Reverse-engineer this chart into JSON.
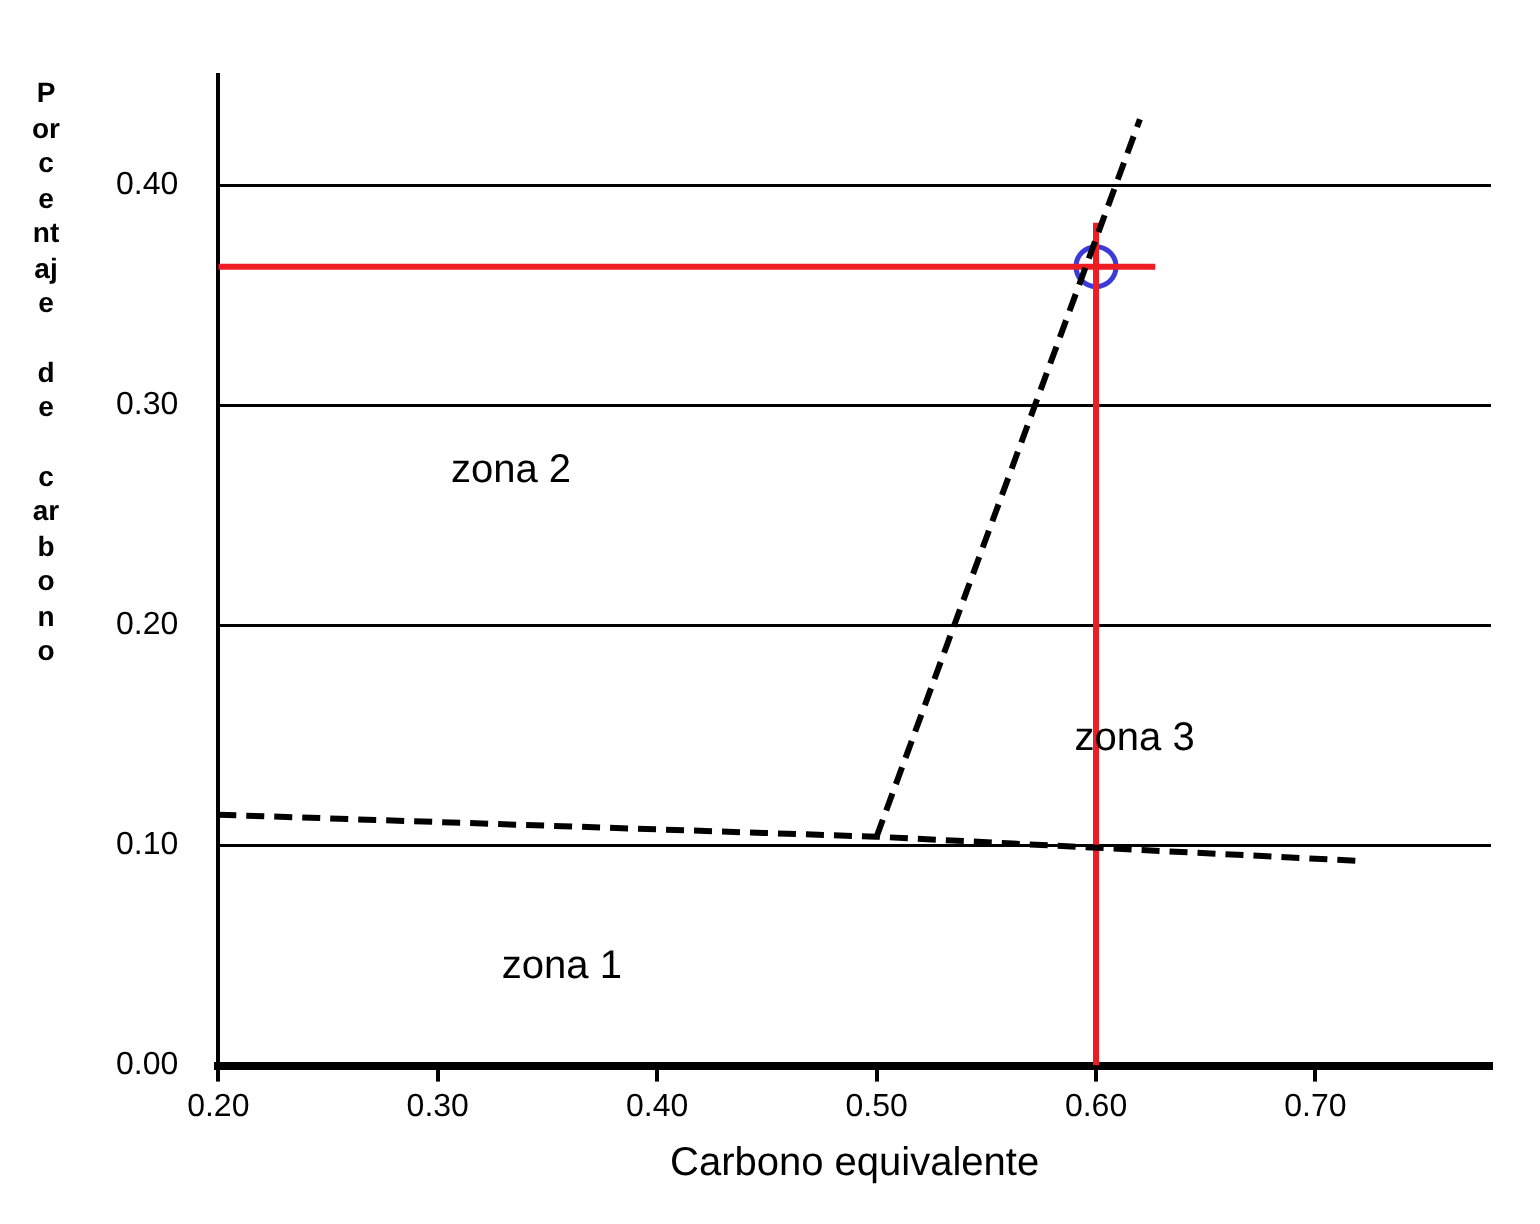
{
  "chart_data": {
    "type": "line",
    "xlabel": "Carbono equivalente",
    "ylabel": "Porcentaje de carbono",
    "series": [
      {
        "type": "line",
        "color": "#000000",
        "line_style": "dashed",
        "x": [
          0.2,
          0.5,
          0.72
        ],
        "values": [
          0.114,
          0.104,
          0.093
        ]
      },
      {
        "type": "line",
        "color": "#000000",
        "line_style": "dashed",
        "x": [
          0.5,
          0.62
        ],
        "values": [
          0.104,
          0.43
        ]
      },
      {
        "type": "line",
        "color": "#ee1c25",
        "line_style": "solid",
        "x": [
          0.2,
          0.627
        ],
        "values": [
          0.363,
          0.363
        ]
      },
      {
        "type": "line",
        "color": "#ee1c25",
        "line_style": "solid",
        "x": [
          0.6,
          0.6
        ],
        "values": [
          0,
          0.383
        ]
      },
      {
        "type": "scatter",
        "color": "#3b3bdc",
        "marker": "circle",
        "x": [
          0.6
        ],
        "values": [
          0.363
        ]
      }
    ],
    "xlim": [
      0.2,
      0.78
    ],
    "ylim": [
      0,
      0.45
    ],
    "xticks": [
      {
        "value": 0.2,
        "label": "0.20"
      },
      {
        "value": 0.3,
        "label": "0.30"
      },
      {
        "value": 0.4,
        "label": "0.40"
      },
      {
        "value": 0.5,
        "label": "0.50"
      },
      {
        "value": 0.6,
        "label": "0.60"
      },
      {
        "value": 0.7,
        "label": "0.70"
      }
    ],
    "yticks": [
      {
        "value": 0,
        "label": "0.00"
      },
      {
        "value": 0.1,
        "label": "0.10"
      },
      {
        "value": 0.2,
        "label": "0.20"
      },
      {
        "value": 0.3,
        "label": "0.30"
      },
      {
        "value": 0.4,
        "label": "0.40"
      }
    ],
    "grid": "y",
    "legend": false,
    "annotations": [
      "zona 1",
      "zona 2",
      "zona 3"
    ]
  }
}
